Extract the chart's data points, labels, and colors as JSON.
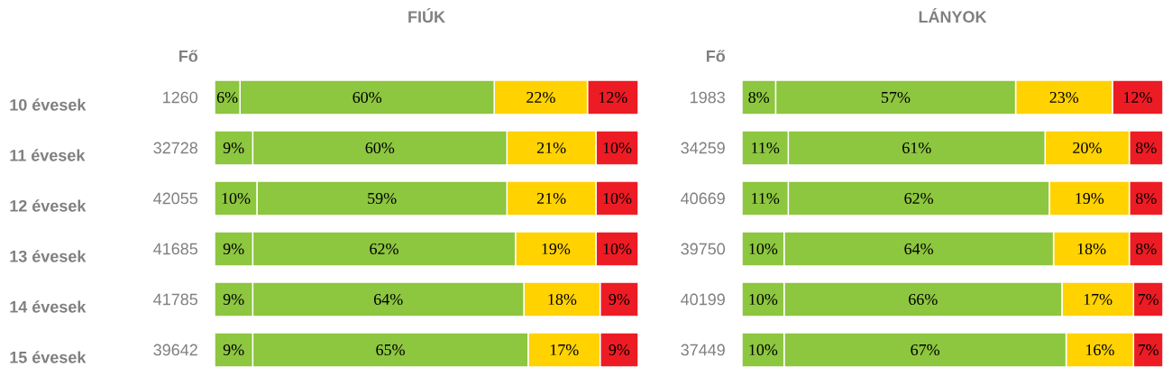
{
  "chart_data": [
    {
      "type": "bar",
      "title": "FIÚK",
      "orientation": "horizontal",
      "stacked": true,
      "categories": [
        "10 évesek",
        "11 évesek",
        "12 évesek",
        "13 évesek",
        "14 évesek",
        "15 évesek"
      ],
      "series": [
        {
          "color": "#8dc63f",
          "values": [
            6,
            9,
            10,
            9,
            9,
            9
          ],
          "value_labels": [
            "6%",
            "9%",
            "10%",
            "9%",
            "9%",
            "9%"
          ]
        },
        {
          "color": "#8dc63f",
          "values": [
            60,
            60,
            59,
            62,
            64,
            65
          ],
          "value_labels": [
            "60%",
            "60%",
            "59%",
            "62%",
            "64%",
            "65%"
          ]
        },
        {
          "color": "#ffd200",
          "values": [
            22,
            21,
            21,
            19,
            18,
            17
          ],
          "value_labels": [
            "22%",
            "21%",
            "21%",
            "19%",
            "18%",
            "17%"
          ]
        },
        {
          "color": "#ed1c24",
          "values": [
            12,
            10,
            10,
            10,
            9,
            9
          ],
          "value_labels": [
            "12%",
            "10%",
            "10%",
            "10%",
            "9%",
            "9%"
          ]
        }
      ],
      "annotations": [
        "Fő",
        "1260",
        "32728",
        "42055",
        "41685",
        "41785",
        "39642"
      ]
    },
    {
      "type": "bar",
      "title": "LÁNYOK",
      "orientation": "horizontal",
      "stacked": true,
      "categories": [
        null,
        null,
        null,
        null,
        null,
        null
      ],
      "series": [
        {
          "color": "#8dc63f",
          "values": [
            8,
            11,
            11,
            10,
            10,
            10
          ],
          "value_labels": [
            "8%",
            "11%",
            "11%",
            "10%",
            "10%",
            "10%"
          ]
        },
        {
          "color": "#8dc63f",
          "values": [
            57,
            61,
            62,
            64,
            66,
            67
          ],
          "value_labels": [
            "57%",
            "61%",
            "62%",
            "64%",
            "66%",
            "67%"
          ]
        },
        {
          "color": "#ffd200",
          "values": [
            23,
            20,
            19,
            18,
            17,
            16
          ],
          "value_labels": [
            "23%",
            "20%",
            "19%",
            "18%",
            "17%",
            "16%"
          ]
        },
        {
          "color": "#ed1c24",
          "values": [
            12,
            8,
            8,
            8,
            7,
            7
          ],
          "value_labels": [
            "12%",
            "8%",
            "8%",
            "8%",
            "7%",
            "7%"
          ]
        }
      ],
      "annotations": [
        "Fő",
        "1983",
        "34259",
        "40669",
        "39750",
        "40199",
        "37449"
      ]
    }
  ]
}
